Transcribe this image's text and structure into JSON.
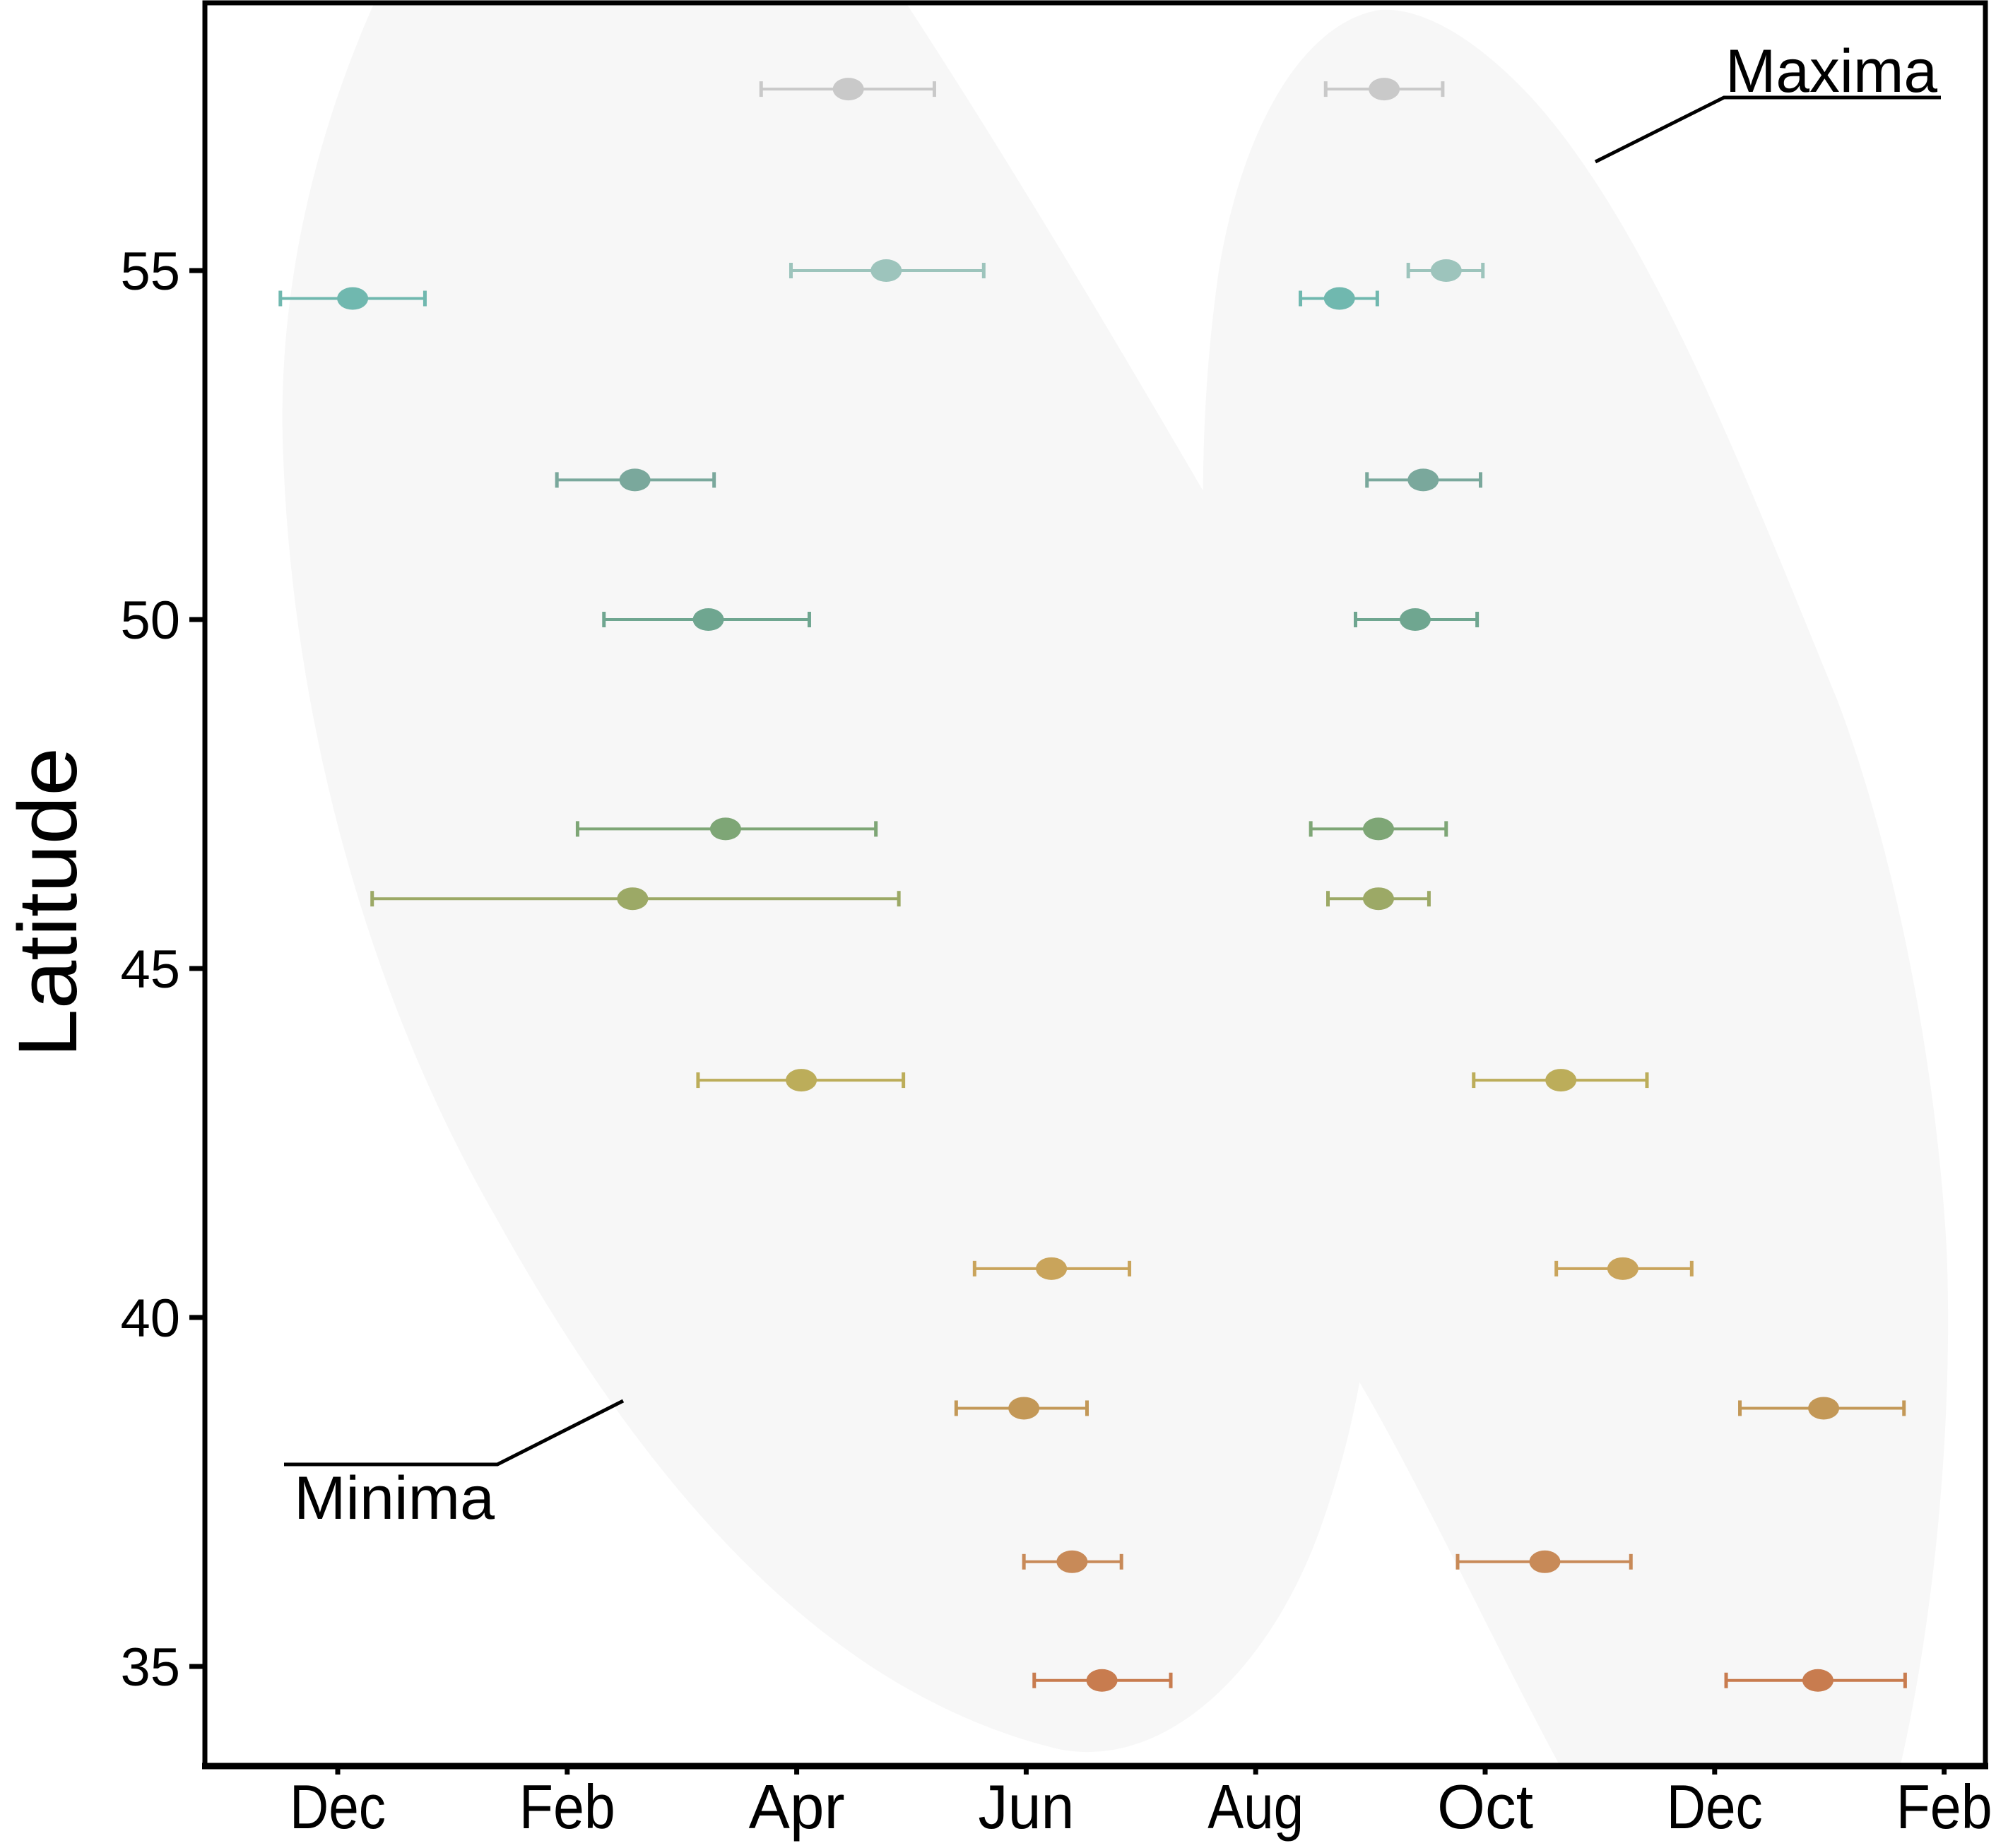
{
  "chart_data": {
    "type": "scatter",
    "title": "",
    "xlabel": "",
    "ylabel": "Latitude",
    "x_units": "months since 1 Dec",
    "x_ticks": [
      {
        "label": "Dec",
        "value": 0
      },
      {
        "label": "Feb",
        "value": 2
      },
      {
        "label": "Apr",
        "value": 4
      },
      {
        "label": "Jun",
        "value": 6
      },
      {
        "label": "Aug",
        "value": 8
      },
      {
        "label": "Oct",
        "value": 10
      },
      {
        "label": "Dec",
        "value": 12
      },
      {
        "label": "Feb",
        "value": 14
      }
    ],
    "y_ticks": [
      {
        "label": "55",
        "value": 55
      },
      {
        "label": "50",
        "value": 50
      },
      {
        "label": "45",
        "value": 45
      },
      {
        "label": "40",
        "value": 40
      },
      {
        "label": "35",
        "value": 35
      }
    ],
    "xlim": [
      -0.65,
      14.35
    ],
    "ylim": [
      33.57,
      58.84
    ],
    "grid": false,
    "legend": null,
    "annotations": [
      {
        "label": "Maxima",
        "target": "right-shaded-region"
      },
      {
        "label": "Minima",
        "target": "left-shaded-region"
      }
    ],
    "region_color": "#f7f7f7",
    "series": [
      {
        "name": "Minima",
        "points": [
          {
            "lat": 57.6,
            "x": 4.45,
            "x_low": 3.69,
            "x_high": 5.2,
            "color": "#c9c9c9"
          },
          {
            "lat": 55.0,
            "x": 4.78,
            "x_low": 3.95,
            "x_high": 5.63,
            "color": "#9dc4bc"
          },
          {
            "lat": 54.6,
            "x": 0.13,
            "x_low": -0.5,
            "x_high": 0.76,
            "color": "#70b8af"
          },
          {
            "lat": 52.0,
            "x": 2.59,
            "x_low": 1.91,
            "x_high": 3.28,
            "color": "#7aa89c"
          },
          {
            "lat": 50.0,
            "x": 3.23,
            "x_low": 2.32,
            "x_high": 4.11,
            "color": "#6fa690"
          },
          {
            "lat": 47.0,
            "x": 3.38,
            "x_low": 2.09,
            "x_high": 4.69,
            "color": "#7ea676"
          },
          {
            "lat": 46.0,
            "x": 2.57,
            "x_low": 0.3,
            "x_high": 4.89,
            "color": "#9ca966"
          },
          {
            "lat": 43.4,
            "x": 4.04,
            "x_low": 3.14,
            "x_high": 4.93,
            "color": "#bcad5a"
          },
          {
            "lat": 40.7,
            "x": 6.22,
            "x_low": 5.55,
            "x_high": 6.9,
            "color": "#c9a45b"
          },
          {
            "lat": 38.7,
            "x": 5.98,
            "x_low": 5.39,
            "x_high": 6.53,
            "color": "#c39857"
          },
          {
            "lat": 36.5,
            "x": 6.4,
            "x_low": 5.98,
            "x_high": 6.83,
            "color": "#c88a58"
          },
          {
            "lat": 34.8,
            "x": 6.66,
            "x_low": 6.07,
            "x_high": 7.26,
            "color": "#c87c4f"
          }
        ]
      },
      {
        "name": "Maxima",
        "points": [
          {
            "lat": 57.6,
            "x": 9.12,
            "x_low": 8.61,
            "x_high": 9.63,
            "color": "#c9c9c9"
          },
          {
            "lat": 55.0,
            "x": 9.66,
            "x_low": 9.33,
            "x_high": 9.98,
            "color": "#9dc4bc"
          },
          {
            "lat": 54.6,
            "x": 8.73,
            "x_low": 8.39,
            "x_high": 9.06,
            "color": "#70b8af"
          },
          {
            "lat": 52.0,
            "x": 9.46,
            "x_low": 8.97,
            "x_high": 9.96,
            "color": "#7aa89c"
          },
          {
            "lat": 50.0,
            "x": 9.39,
            "x_low": 8.87,
            "x_high": 9.93,
            "color": "#6fa690"
          },
          {
            "lat": 47.0,
            "x": 9.07,
            "x_low": 8.48,
            "x_high": 9.66,
            "color": "#7ea676"
          },
          {
            "lat": 46.0,
            "x": 9.07,
            "x_low": 8.63,
            "x_high": 9.51,
            "color": "#9ca966"
          },
          {
            "lat": 43.4,
            "x": 10.66,
            "x_low": 9.9,
            "x_high": 11.41,
            "color": "#bcad5a"
          },
          {
            "lat": 40.7,
            "x": 11.2,
            "x_low": 10.62,
            "x_high": 11.8,
            "color": "#c9a45b"
          },
          {
            "lat": 38.7,
            "x": 12.95,
            "x_low": 12.22,
            "x_high": 13.65,
            "color": "#c39857"
          },
          {
            "lat": 36.5,
            "x": 10.52,
            "x_low": 9.76,
            "x_high": 11.27,
            "color": "#c88a58"
          },
          {
            "lat": 34.8,
            "x": 12.9,
            "x_low": 12.1,
            "x_high": 13.66,
            "color": "#c87c4f"
          }
        ]
      }
    ]
  }
}
